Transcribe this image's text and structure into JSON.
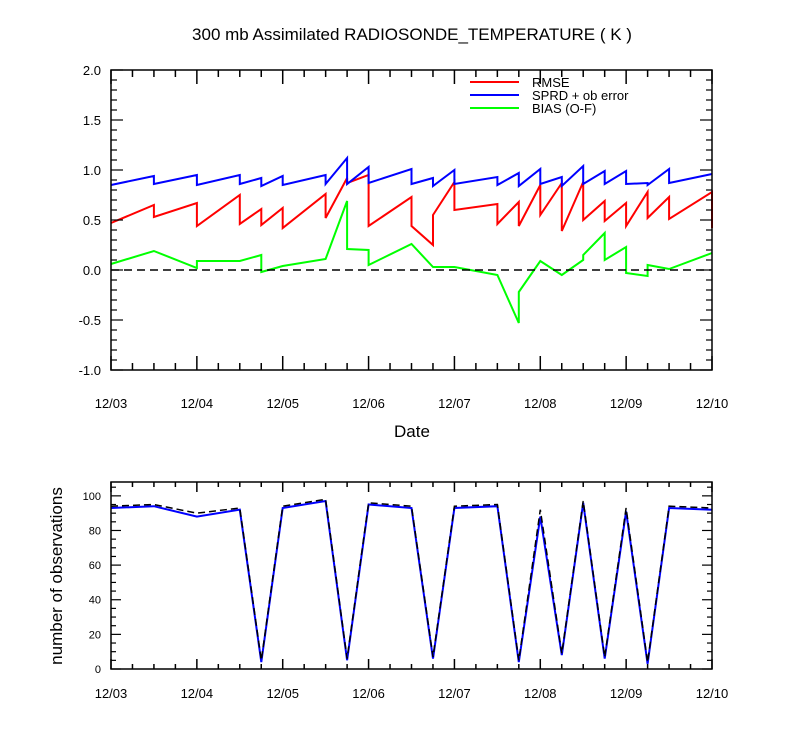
{
  "chart_data": [
    {
      "type": "line",
      "title": "300 mb Assimilated RADIOSONDE_TEMPERATURE ( K )",
      "xlabel": "Date",
      "ylabel": "",
      "x_tick_labels": [
        "12/03",
        "12/04",
        "12/05",
        "12/06",
        "12/07",
        "12/08",
        "12/09",
        "12/10"
      ],
      "y_tick_labels": [
        "-1.0",
        "-0.5",
        "0.0",
        "0.5",
        "1.0",
        "1.5",
        "2.0"
      ],
      "xlim": [
        0,
        7
      ],
      "ylim": [
        -1.0,
        2.0
      ],
      "zero_line": "dashed black",
      "grid": false,
      "legend_position": "top-right",
      "series": [
        {
          "name": "RMSE",
          "color": "#ff0000",
          "x": [
            0,
            0.5,
            0.5,
            1,
            1,
            1.5,
            1.5,
            1.75,
            1.75,
            2,
            2,
            2.5,
            2.5,
            2.75,
            2.75,
            3,
            3,
            3.5,
            3.5,
            3.75,
            3.75,
            4,
            4,
            4.5,
            4.5,
            4.75,
            4.75,
            5,
            5,
            5.25,
            5.25,
            5.5,
            5.5,
            5.75,
            5.75,
            6,
            6,
            6.25,
            6.25,
            6.5,
            6.5,
            7,
            7
          ],
          "y": [
            0.47,
            0.65,
            0.53,
            0.67,
            0.44,
            0.75,
            0.46,
            0.61,
            0.45,
            0.62,
            0.42,
            0.76,
            0.52,
            0.92,
            0.87,
            0.95,
            0.44,
            0.73,
            0.44,
            0.25,
            0.55,
            0.88,
            0.6,
            0.66,
            0.46,
            0.68,
            0.44,
            0.85,
            0.55,
            0.87,
            0.39,
            0.88,
            0.5,
            0.69,
            0.49,
            0.67,
            0.44,
            0.78,
            0.52,
            0.73,
            0.51,
            0.78,
            0.42
          ]
        },
        {
          "name": "SPRD + ob error",
          "color": "#0000ff",
          "x": [
            0,
            0.5,
            0.5,
            1,
            1,
            1.5,
            1.5,
            1.75,
            1.75,
            2,
            2,
            2.5,
            2.5,
            2.75,
            2.75,
            3,
            3,
            3.5,
            3.5,
            3.75,
            3.75,
            4,
            4,
            4.5,
            4.5,
            4.75,
            4.75,
            5,
            5,
            5.25,
            5.25,
            5.5,
            5.5,
            5.75,
            5.75,
            6,
            6,
            6.25,
            6.25,
            6.5,
            6.5,
            7
          ],
          "y": [
            0.85,
            0.94,
            0.86,
            0.95,
            0.85,
            0.95,
            0.86,
            0.92,
            0.84,
            0.94,
            0.85,
            0.95,
            0.86,
            1.12,
            0.86,
            1.03,
            0.87,
            1.01,
            0.86,
            0.92,
            0.84,
            1.0,
            0.86,
            0.93,
            0.85,
            0.97,
            0.84,
            1.01,
            0.86,
            0.93,
            0.84,
            1.04,
            0.86,
            0.99,
            0.86,
            0.99,
            0.86,
            0.87,
            0.85,
            1.01,
            0.87,
            0.96
          ]
        },
        {
          "name": "BIAS (O-F)",
          "color": "#00ff00",
          "x": [
            0,
            0.5,
            1,
            1,
            1.5,
            1.75,
            1.75,
            2,
            2.5,
            2.75,
            2.75,
            3,
            3,
            3.5,
            3.75,
            4,
            4.5,
            4.75,
            4.75,
            5,
            5.25,
            5.5,
            5.5,
            5.75,
            5.75,
            6,
            6,
            6.25,
            6.25,
            6.5,
            7
          ],
          "y": [
            0.06,
            0.19,
            0.02,
            0.09,
            0.09,
            0.15,
            -0.02,
            0.04,
            0.11,
            0.69,
            0.21,
            0.2,
            0.05,
            0.26,
            0.03,
            0.03,
            -0.05,
            -0.53,
            -0.22,
            0.09,
            -0.05,
            0.1,
            0.15,
            0.37,
            0.1,
            0.23,
            -0.03,
            -0.06,
            0.05,
            0.01,
            0.17
          ]
        }
      ]
    },
    {
      "type": "line",
      "title": "",
      "xlabel": "",
      "ylabel": "number of observations",
      "x_tick_labels": [
        "12/03",
        "12/04",
        "12/05",
        "12/06",
        "12/07",
        "12/08",
        "12/09",
        "12/10"
      ],
      "y_tick_labels": [
        "0",
        "20",
        "40",
        "60",
        "80",
        "100"
      ],
      "xlim": [
        0,
        7
      ],
      "ylim": [
        0,
        108
      ],
      "grid": false,
      "series": [
        {
          "color": "#0000ff",
          "style": "solid",
          "x": [
            0,
            0.5,
            1,
            1.5,
            1.75,
            2,
            2.5,
            2.75,
            3,
            3.5,
            3.75,
            4,
            4.5,
            4.75,
            5,
            5.25,
            5.5,
            5.75,
            6,
            6.25,
            6.5,
            7
          ],
          "y": [
            93,
            94,
            88,
            92,
            4,
            93,
            97,
            5,
            95,
            93,
            6,
            93,
            94,
            4,
            88,
            8,
            96,
            6,
            91,
            3,
            93,
            92
          ]
        },
        {
          "color": "#000000",
          "style": "dashed",
          "x": [
            0,
            0.5,
            1,
            1.5,
            1.75,
            2,
            2.5,
            2.75,
            3,
            3.5,
            3.75,
            4,
            4.5,
            4.75,
            5,
            5.25,
            5.5,
            5.75,
            6,
            6.25,
            6.5,
            7
          ],
          "y": [
            94,
            95,
            90,
            93,
            5,
            94,
            98,
            6,
            96,
            94,
            7,
            94,
            95,
            5,
            92,
            9,
            97,
            7,
            93,
            4,
            94,
            93
          ]
        }
      ]
    }
  ]
}
